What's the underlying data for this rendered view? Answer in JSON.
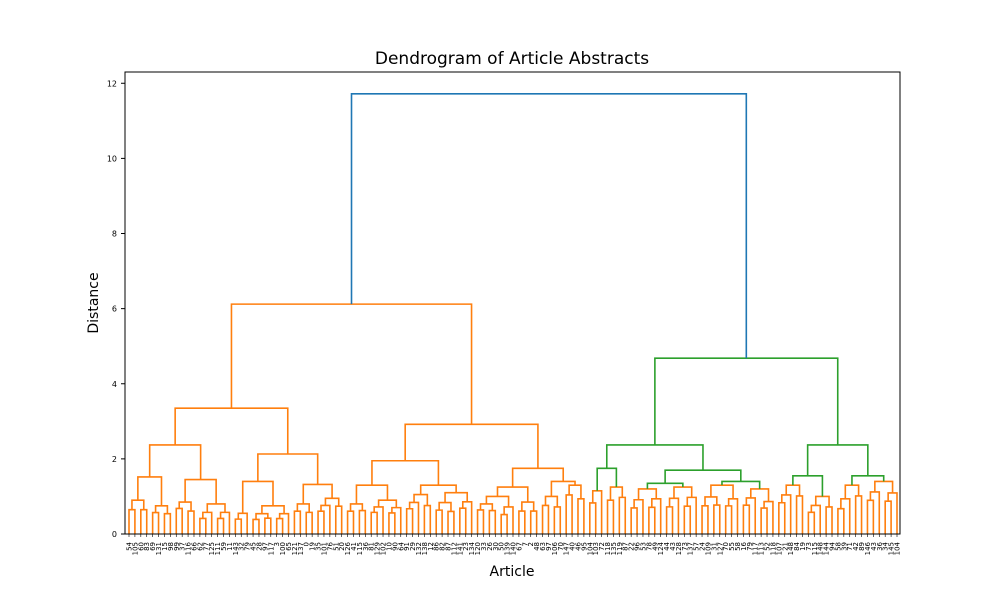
{
  "chart_data": {
    "type": "dendrogram",
    "title": "Dendrogram of Article Abstracts",
    "xlabel": "Article",
    "ylabel": "Distance",
    "ylim": [
      0,
      12.3
    ],
    "y_ticks": [
      0,
      2,
      4,
      6,
      8,
      10,
      12
    ],
    "grid": false,
    "colors": {
      "root": "#1f77b4",
      "cluster_1": "#ff7f0e",
      "cluster_2": "#2ca02c"
    },
    "leaves": [
      "54",
      "105",
      "60",
      "83",
      "69",
      "131",
      "15",
      "98",
      "99",
      "37",
      "116",
      "66",
      "62",
      "77",
      "125",
      "111",
      "59",
      "11",
      "143",
      "32",
      "79",
      "45",
      "28",
      "97",
      "117",
      "3",
      "100",
      "65",
      "121",
      "137",
      "0",
      "19",
      "35",
      "101",
      "76",
      "51",
      "20",
      "126",
      "41",
      "115",
      "36",
      "81",
      "129",
      "102",
      "10",
      "90",
      "64",
      "91",
      "29",
      "132",
      "138",
      "12",
      "86",
      "82",
      "87",
      "112",
      "141",
      "23",
      "134",
      "120",
      "33",
      "26",
      "30",
      "50",
      "139",
      "140",
      "67",
      "7",
      "2",
      "48",
      "63",
      "97",
      "106",
      "70",
      "147",
      "40",
      "46",
      "95",
      "104",
      "103",
      "72",
      "118",
      "135",
      "119",
      "87",
      "22",
      "96",
      "53",
      "78",
      "49",
      "124",
      "44",
      "43",
      "128",
      "73",
      "137",
      "57",
      "24",
      "109",
      "31",
      "127",
      "70",
      "55",
      "58",
      "16",
      "79",
      "117",
      "113",
      "52",
      "118",
      "107",
      "21",
      "148",
      "84",
      "19",
      "73",
      "115",
      "148",
      "144",
      "94",
      "58",
      "39",
      "71",
      "42",
      "89",
      "146",
      "43",
      "36",
      "34",
      "145",
      "104"
    ],
    "merges": [
      {
        "distance": 11.72,
        "color": "root"
      },
      {
        "distance": 6.12,
        "color": "cluster_2"
      },
      {
        "distance": 4.68,
        "color": "cluster_1"
      },
      {
        "distance": 3.35,
        "color": "cluster_2"
      },
      {
        "distance": 2.92,
        "color": "cluster_1"
      },
      {
        "distance": 2.37,
        "color": "cluster_1"
      },
      {
        "distance": 2.37,
        "color": "cluster_2"
      },
      {
        "distance": 2.37,
        "color": "cluster_1"
      },
      {
        "distance": 2.13,
        "color": "cluster_2"
      },
      {
        "distance": 1.95,
        "color": "cluster_2"
      },
      {
        "distance": 1.75,
        "color": "cluster_2"
      },
      {
        "distance": 1.75,
        "color": "cluster_2"
      },
      {
        "distance": 1.7,
        "color": "cluster_1"
      },
      {
        "distance": 1.55,
        "color": "cluster_2"
      },
      {
        "distance": 1.55,
        "color": "cluster_2"
      },
      {
        "distance": 1.52,
        "color": "cluster_1"
      },
      {
        "distance": 1.45,
        "color": "cluster_1"
      },
      {
        "distance": 1.4,
        "color": "cluster_2"
      },
      {
        "distance": 1.32,
        "color": "cluster_1"
      },
      {
        "distance": 1.3,
        "color": "cluster_2"
      },
      {
        "distance": 1.3,
        "color": "cluster_2"
      },
      {
        "distance": 1.25,
        "color": "cluster_2"
      },
      {
        "distance": 1.2,
        "color": "cluster_1"
      },
      {
        "distance": 1.18,
        "color": "cluster_1"
      },
      {
        "distance": 1.15,
        "color": "cluster_1"
      },
      {
        "distance": 1.0,
        "color": "cluster_1"
      }
    ],
    "tree": {
      "color": "root",
      "children": [
        {
          "color": "cluster_1",
          "children": [
            {
              "color": "cluster_1",
              "children": [
                {
                  "color": "cluster_1",
                  "children": [
                    {
                      "color": "cluster_1",
                      "children": [
                        {
                          "leaves": 4,
                          "h": 0.9
                        },
                        {
                          "leaves": 4,
                          "h": 0.75
                        }
                      ]
                    },
                    {
                      "color": "cluster_1",
                      "children": [
                        {
                          "leaves": 4,
                          "h": 0.85
                        },
                        {
                          "leaves": 6,
                          "h": 0.8
                        }
                      ]
                    }
                  ]
                },
                {
                  "color": "cluster_1",
                  "children": [
                    {
                      "color": "cluster_1",
                      "children": [
                        {
                          "leaves": 3,
                          "h": 0.55
                        },
                        {
                          "leaves": 7,
                          "h": 0.75
                        }
                      ]
                    },
                    {
                      "color": "cluster_1",
                      "children": [
                        {
                          "leaves": 4,
                          "h": 0.8
                        },
                        {
                          "leaves": 5,
                          "h": 0.95
                        }
                      ]
                    }
                  ]
                }
              ]
            },
            {
              "color": "cluster_1",
              "children": [
                {
                  "color": "cluster_1",
                  "children": [
                    {
                      "color": "cluster_1",
                      "children": [
                        {
                          "leaves": 4,
                          "h": 0.8
                        },
                        {
                          "leaves": 6,
                          "h": 0.9
                        }
                      ]
                    },
                    {
                      "color": "cluster_1",
                      "children": [
                        {
                          "leaves": 5,
                          "h": 1.05
                        },
                        {
                          "leaves": 7,
                          "h": 1.1
                        }
                      ]
                    }
                  ]
                },
                {
                  "color": "cluster_1",
                  "children": [
                    {
                      "color": "cluster_1",
                      "children": [
                        {
                          "leaves": 7,
                          "h": 1.0
                        },
                        {
                          "leaves": 4,
                          "h": 0.85
                        }
                      ]
                    },
                    {
                      "color": "cluster_1",
                      "children": [
                        {
                          "leaves": 4,
                          "h": 1.0
                        },
                        {
                          "leaves": 4,
                          "h": 1.3
                        }
                      ]
                    }
                  ]
                }
              ]
            }
          ]
        },
        {
          "color": "cluster_2",
          "children": [
            {
              "color": "cluster_2",
              "children": [
                {
                  "color": "cluster_2",
                  "children": [
                    {
                      "leaves": 3,
                      "h": 1.15
                    },
                    {
                      "leaves": 4,
                      "h": 1.25
                    }
                  ]
                },
                {
                  "color": "cluster_2",
                  "children": [
                    {
                      "color": "cluster_2",
                      "children": [
                        {
                          "leaves": 6,
                          "h": 1.2
                        },
                        {
                          "leaves": 6,
                          "h": 1.25
                        }
                      ]
                    },
                    {
                      "color": "cluster_2",
                      "children": [
                        {
                          "leaves": 7,
                          "h": 1.3
                        },
                        {
                          "leaves": 6,
                          "h": 1.2
                        }
                      ]
                    }
                  ]
                }
              ]
            },
            {
              "color": "cluster_2",
              "children": [
                {
                  "color": "cluster_2",
                  "children": [
                    {
                      "leaves": 5,
                      "h": 1.3
                    },
                    {
                      "leaves": 5,
                      "h": 1.0
                    }
                  ]
                },
                {
                  "color": "cluster_2",
                  "children": [
                    {
                      "leaves": 5,
                      "h": 1.3
                    },
                    {
                      "leaves": 6,
                      "h": 1.4
                    }
                  ]
                }
              ]
            }
          ]
        }
      ]
    }
  }
}
